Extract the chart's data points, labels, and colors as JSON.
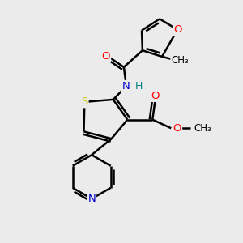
{
  "bg_color": "#ebebeb",
  "bond_color": "#000000",
  "bond_width": 1.8,
  "atom_colors": {
    "O": "#ff0000",
    "N": "#0000cd",
    "S": "#cccc00",
    "C": "#000000",
    "H": "#008080"
  },
  "font_size": 9.5
}
